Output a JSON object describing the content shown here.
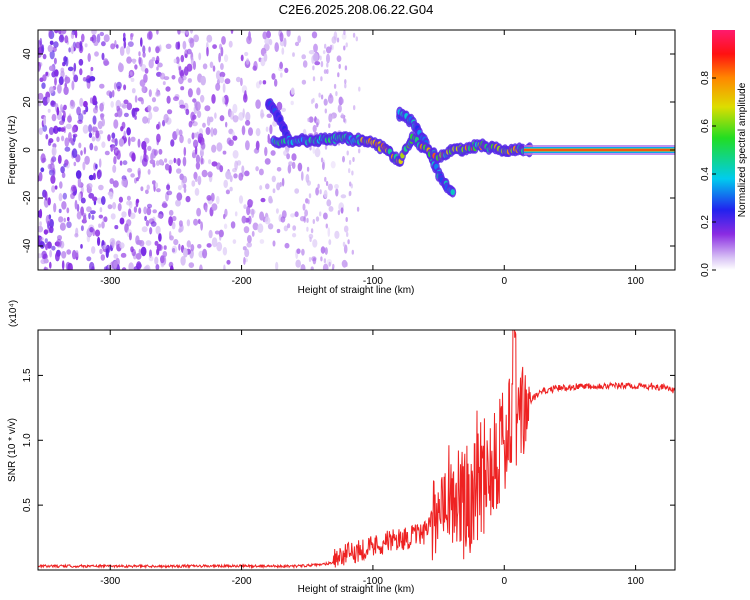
{
  "title": "C2E6.2025.208.06.22.G04",
  "chart_data": [
    {
      "type": "heatmap",
      "xlabel": "Height of straight line (km)",
      "ylabel": "Frequency (Hz)",
      "xlim": [
        -355,
        130
      ],
      "ylim": [
        -50,
        50
      ],
      "xticks": [
        "-300",
        "-200",
        "-100",
        "0",
        "100"
      ],
      "xtick_values": [
        -300,
        -200,
        -100,
        0,
        100
      ],
      "yticks": [
        "-40",
        "-20",
        "0",
        "20",
        "40"
      ],
      "ytick_values": [
        -40,
        -20,
        0,
        20,
        40
      ],
      "colorbar": {
        "label": "Normalized spectral amplitude",
        "range": [
          0,
          1
        ],
        "ticks": [
          "0.0",
          "0.2",
          "0.4",
          "0.6",
          "0.8"
        ],
        "tick_values": [
          0.0,
          0.2,
          0.4,
          0.6,
          0.8
        ],
        "colormap": "rainbow (white-violet-blue-cyan-green-yellow-red-magenta)"
      },
      "features": {
        "noise_region_x": [
          -355,
          -120
        ],
        "ridge": {
          "x": [
            -175,
            -160,
            -140,
            -120,
            -100,
            -90,
            -80,
            -70,
            -60,
            -50,
            -40,
            -30,
            -20,
            -10,
            0,
            20,
            60,
            130
          ],
          "y": [
            3,
            4,
            4,
            5,
            3,
            0,
            -5,
            5,
            0,
            -3,
            0,
            0,
            2,
            1,
            0,
            0,
            0,
            0
          ]
        },
        "secondary_streak": {
          "x": [
            -80,
            -70,
            -60,
            -50,
            -40
          ],
          "y": [
            15,
            12,
            3,
            -10,
            -18
          ]
        },
        "early_streak": {
          "x": [
            -180,
            -170,
            -165
          ],
          "y": [
            20,
            12,
            5
          ]
        }
      }
    },
    {
      "type": "line",
      "xlabel": "Height of straight line (km)",
      "ylabel": "SNR (10 * v/v)",
      "y_multiplier": "(x10⁴)",
      "y_units_note": "values in units of 10^4",
      "xlim": [
        -355,
        130
      ],
      "ylim": [
        0,
        1.85
      ],
      "xticks": [
        "-300",
        "-200",
        "-100",
        "0",
        "100"
      ],
      "xtick_values": [
        -300,
        -200,
        -100,
        0,
        100
      ],
      "yticks": [
        "0.5",
        "1.0",
        "1.5"
      ],
      "ytick_values": [
        0.5,
        1.0,
        1.5
      ],
      "series": [
        {
          "color": "#ee2222",
          "x": [
            -355,
            -300,
            -250,
            -200,
            -160,
            -140,
            -120,
            -110,
            -100,
            -90,
            -80,
            -70,
            -60,
            -55,
            -50,
            -45,
            -40,
            -35,
            -30,
            -25,
            -20,
            -15,
            -10,
            -5,
            0,
            5,
            8,
            10,
            15,
            20,
            25,
            30,
            40,
            60,
            80,
            100,
            120,
            130
          ],
          "y": [
            0.03,
            0.03,
            0.03,
            0.03,
            0.03,
            0.04,
            0.08,
            0.12,
            0.15,
            0.18,
            0.2,
            0.22,
            0.25,
            0.35,
            0.55,
            0.75,
            0.6,
            0.6,
            0.5,
            0.7,
            0.8,
            0.85,
            0.9,
            1.0,
            1.05,
            1.1,
            1.2,
            1.15,
            1.25,
            1.3,
            1.35,
            1.38,
            1.4,
            1.42,
            1.42,
            1.42,
            1.41,
            1.38
          ]
        }
      ]
    }
  ]
}
